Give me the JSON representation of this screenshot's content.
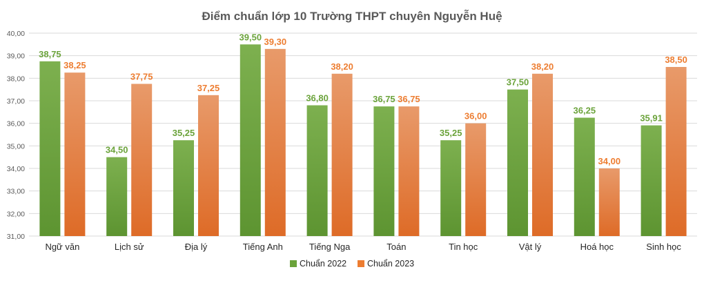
{
  "chart_data": {
    "type": "bar",
    "title": "Điểm chuẩn lớp 10 Trường THPT chuyên Nguyễn Huệ",
    "xlabel": "",
    "ylabel": "",
    "ylim": [
      31,
      40
    ],
    "ytick_labels": [
      "31,00",
      "32,00",
      "33,00",
      "34,00",
      "35,00",
      "36,00",
      "37,00",
      "38,00",
      "39,00",
      "40,00"
    ],
    "categories": [
      "Ngữ văn",
      "Lịch sử",
      "Địa lý",
      "Tiếng Anh",
      "Tiếng Nga",
      "Toán",
      "Tin học",
      "Vật lý",
      "Hoá học",
      "Sinh học"
    ],
    "series": [
      {
        "name": "Chuẩn 2022",
        "color": "#6ba33b",
        "values": [
          38.75,
          34.5,
          35.25,
          39.5,
          36.8,
          36.75,
          35.25,
          37.5,
          36.25,
          35.91
        ],
        "labels": [
          "38,75",
          "34,50",
          "35,25",
          "39,50",
          "36,80",
          "36,75",
          "35,25",
          "37,50",
          "36,25",
          "35,91"
        ]
      },
      {
        "name": "Chuẩn 2023",
        "color": "#ed7d31",
        "values": [
          38.25,
          37.75,
          37.25,
          39.3,
          38.2,
          36.75,
          36.0,
          38.2,
          34.0,
          38.5
        ],
        "labels": [
          "38,25",
          "37,75",
          "37,25",
          "39,30",
          "38,20",
          "36,75",
          "36,00",
          "38,20",
          "34,00",
          "38,50"
        ]
      }
    ],
    "legend_position": "bottom",
    "grid": true
  }
}
